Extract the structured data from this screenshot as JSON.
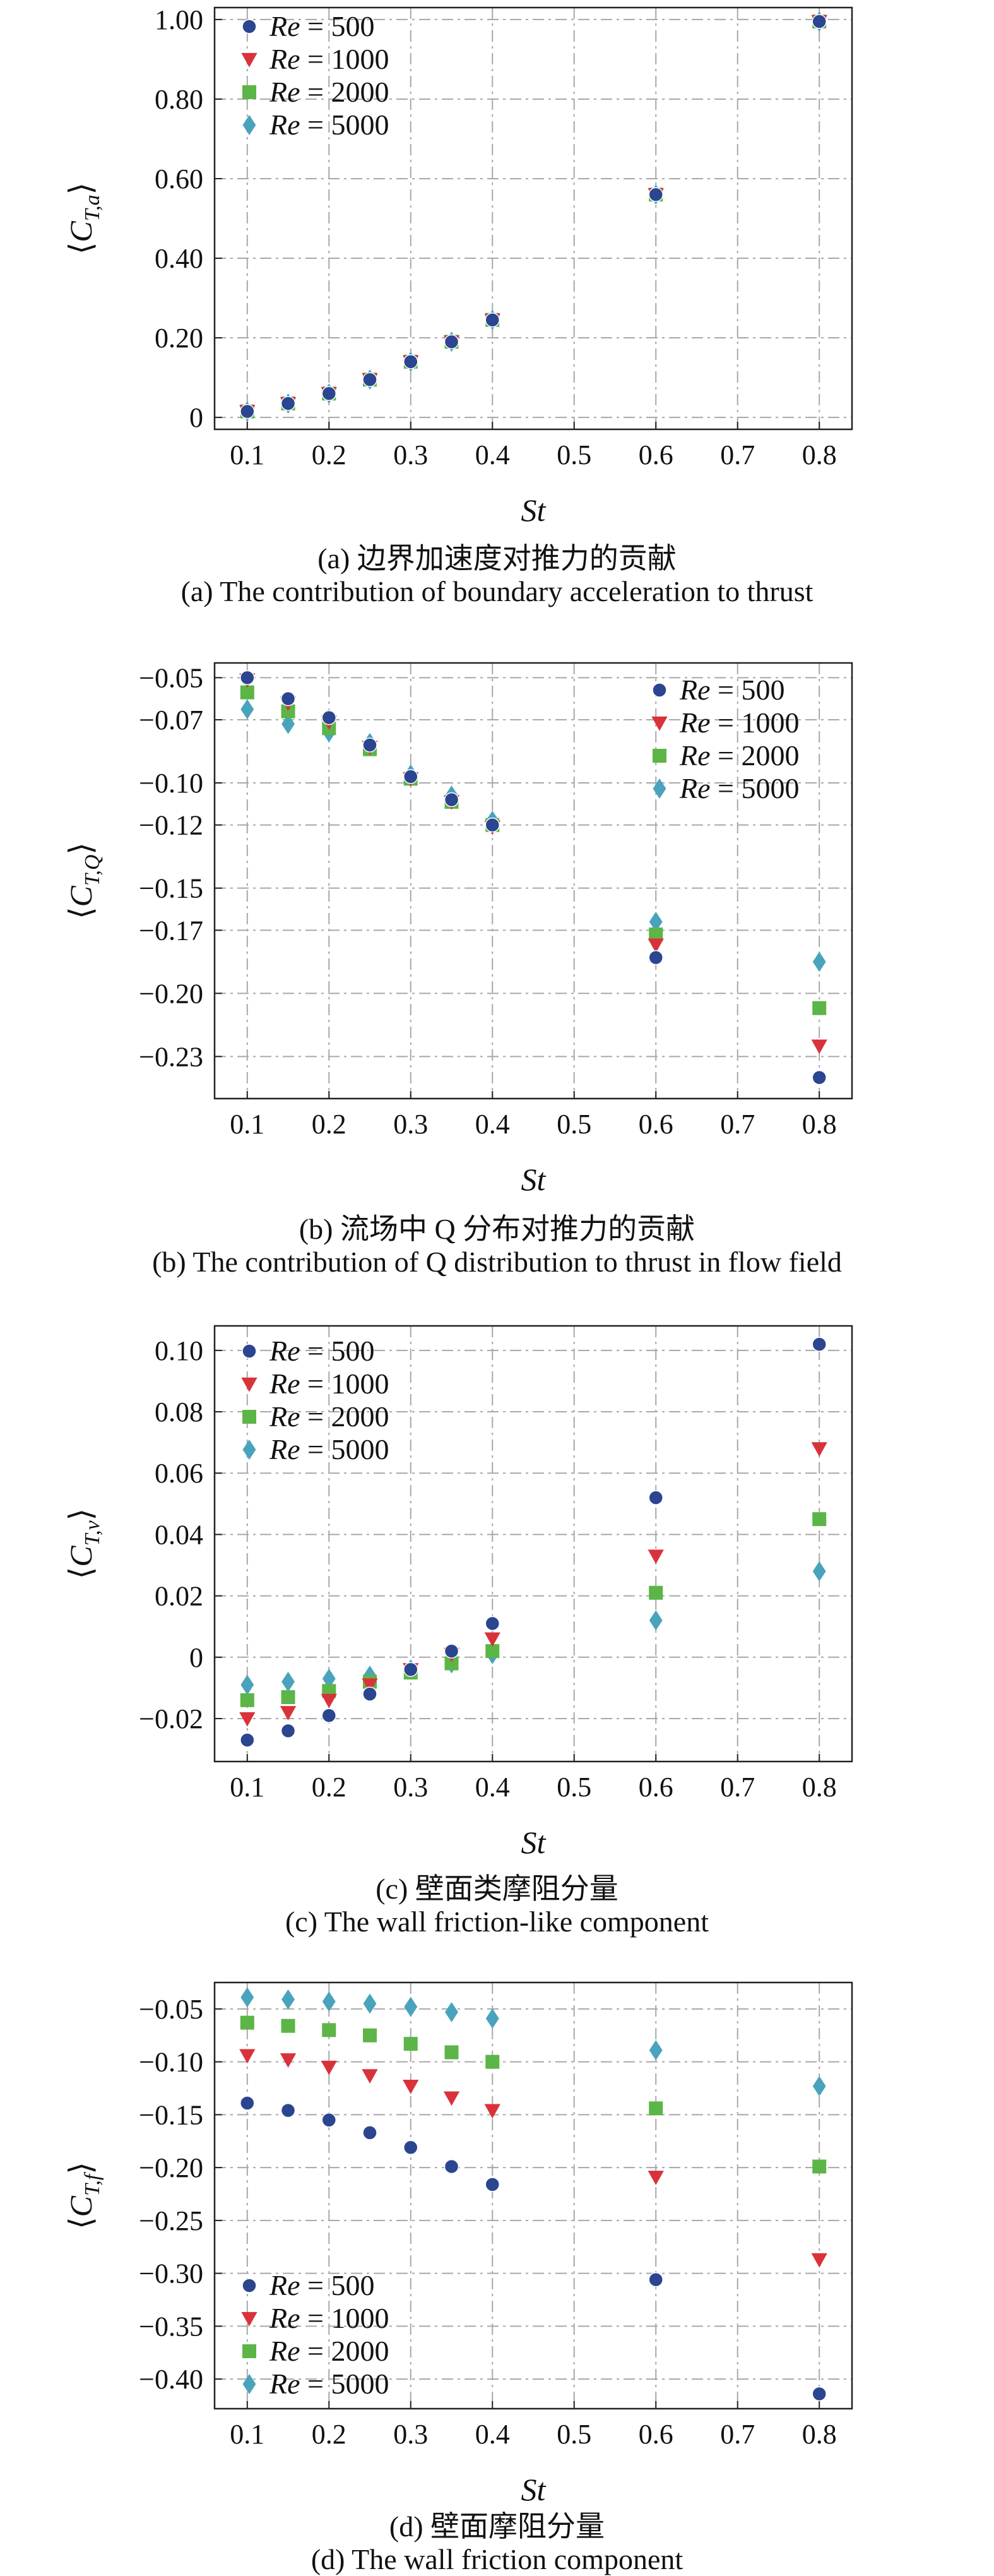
{
  "colors": {
    "re500": "#2b4590",
    "re1000": "#d9323a",
    "re2000": "#5cb547",
    "re5000": "#4aa3bd",
    "grid": "#a8a8a8",
    "frame": "#222222"
  },
  "marker_shapes": {
    "re500": "circle",
    "re1000": "triangle-down",
    "re2000": "square",
    "re5000": "diamond"
  },
  "series_labels": [
    "Re = 500",
    "Re = 1000",
    "Re = 2000",
    "Re = 5000"
  ],
  "chart_data": [
    {
      "type": "scatter",
      "panel": "a",
      "caption_cn": "(a) 边界加速度对推力的贡献",
      "caption_en": "(a) The contribution of boundary acceleration to thrust",
      "xlabel": "St",
      "ylabel": "⟨C_{T,a}⟩",
      "xlim": [
        0.06,
        0.84
      ],
      "ylim": [
        -0.03,
        1.03
      ],
      "xticks": [
        0.1,
        0.2,
        0.3,
        0.4,
        0.5,
        0.6,
        0.7,
        0.8
      ],
      "xtick_labels": [
        "0.1",
        "0.2",
        "0.3",
        "0.4",
        "0.5",
        "0.6",
        "0.7",
        "0.8"
      ],
      "yticks": [
        0,
        0.2,
        0.4,
        0.6,
        0.8,
        1.0
      ],
      "ytick_labels": [
        "0",
        "0.20",
        "0.40",
        "0.60",
        "0.80",
        "1.00"
      ],
      "grid": true,
      "legend": "top-left",
      "x": [
        0.1,
        0.15,
        0.2,
        0.25,
        0.3,
        0.35,
        0.4,
        0.6,
        0.8
      ],
      "series": [
        {
          "name": "Re = 500",
          "values": [
            0.015,
            0.035,
            0.06,
            0.095,
            0.14,
            0.19,
            0.245,
            0.56,
            0.995
          ]
        },
        {
          "name": "Re = 1000",
          "values": [
            0.015,
            0.035,
            0.06,
            0.095,
            0.14,
            0.19,
            0.245,
            0.56,
            0.995
          ]
        },
        {
          "name": "Re = 2000",
          "values": [
            0.015,
            0.035,
            0.06,
            0.095,
            0.14,
            0.19,
            0.245,
            0.56,
            0.995
          ]
        },
        {
          "name": "Re = 5000",
          "values": [
            0.015,
            0.035,
            0.06,
            0.095,
            0.14,
            0.19,
            0.245,
            0.56,
            0.995
          ]
        }
      ]
    },
    {
      "type": "scatter",
      "panel": "b",
      "caption_cn": "(b) 流场中 Q 分布对推力的贡献",
      "caption_en": "(b) The contribution of Q distribution to thrust in flow field",
      "xlabel": "St",
      "ylabel": "⟨C_{T,Q}⟩",
      "xlim": [
        0.06,
        0.84
      ],
      "ylim": [
        -0.25,
        -0.043
      ],
      "xticks": [
        0.1,
        0.2,
        0.3,
        0.4,
        0.5,
        0.6,
        0.7,
        0.8
      ],
      "xtick_labels": [
        "0.1",
        "0.2",
        "0.3",
        "0.4",
        "0.5",
        "0.6",
        "0.7",
        "0.8"
      ],
      "yticks": [
        -0.05,
        -0.07,
        -0.1,
        -0.12,
        -0.15,
        -0.17,
        -0.2,
        -0.23
      ],
      "ytick_labels": [
        "−0.05",
        "−0.07",
        "−0.10",
        "−0.12",
        "−0.15",
        "−0.17",
        "−0.20",
        "−0.23"
      ],
      "grid": true,
      "legend": "top-right",
      "x": [
        0.1,
        0.15,
        0.2,
        0.25,
        0.3,
        0.35,
        0.4,
        0.6,
        0.8
      ],
      "series": [
        {
          "name": "Re = 500",
          "values": [
            -0.05,
            -0.06,
            -0.069,
            -0.082,
            -0.097,
            -0.108,
            -0.12,
            -0.183,
            -0.24
          ]
        },
        {
          "name": "Re = 1000",
          "values": [
            -0.051,
            -0.062,
            -0.071,
            -0.083,
            -0.098,
            -0.109,
            -0.121,
            -0.177,
            -0.225
          ]
        },
        {
          "name": "Re = 2000",
          "values": [
            -0.057,
            -0.066,
            -0.074,
            -0.084,
            -0.098,
            -0.109,
            -0.12,
            -0.172,
            -0.207
          ]
        },
        {
          "name": "Re = 5000",
          "values": [
            -0.065,
            -0.072,
            -0.076,
            -0.081,
            -0.096,
            -0.106,
            -0.118,
            -0.166,
            -0.185
          ]
        }
      ]
    },
    {
      "type": "scatter",
      "panel": "c",
      "caption_cn": "(c) 壁面类摩阻分量",
      "caption_en": "(c) The wall friction-like component",
      "xlabel": "St",
      "ylabel": "⟨C_{T,v}⟩",
      "xlim": [
        0.06,
        0.84
      ],
      "ylim": [
        -0.034,
        0.108
      ],
      "xticks": [
        0.1,
        0.2,
        0.3,
        0.4,
        0.5,
        0.6,
        0.7,
        0.8
      ],
      "xtick_labels": [
        "0.1",
        "0.2",
        "0.3",
        "0.4",
        "0.5",
        "0.6",
        "0.7",
        "0.8"
      ],
      "yticks": [
        -0.02,
        0,
        0.02,
        0.04,
        0.06,
        0.08,
        0.1
      ],
      "ytick_labels": [
        "−0.02",
        "0",
        "0.02",
        "0.04",
        "0.06",
        "0.08",
        "0.10"
      ],
      "grid": true,
      "legend": "top-left",
      "x": [
        0.1,
        0.15,
        0.2,
        0.25,
        0.3,
        0.35,
        0.4,
        0.6,
        0.8
      ],
      "series": [
        {
          "name": "Re = 500",
          "values": [
            -0.027,
            -0.024,
            -0.019,
            -0.012,
            -0.004,
            0.002,
            0.011,
            0.052,
            0.102
          ]
        },
        {
          "name": "Re = 1000",
          "values": [
            -0.02,
            -0.018,
            -0.014,
            -0.009,
            -0.004,
            0.001,
            0.006,
            0.033,
            0.068
          ]
        },
        {
          "name": "Re = 2000",
          "values": [
            -0.014,
            -0.013,
            -0.011,
            -0.008,
            -0.005,
            -0.002,
            0.002,
            0.021,
            0.045
          ]
        },
        {
          "name": "Re = 5000",
          "values": [
            -0.009,
            -0.008,
            -0.007,
            -0.006,
            -0.004,
            -0.002,
            0.001,
            0.012,
            0.028
          ]
        }
      ]
    },
    {
      "type": "scatter",
      "panel": "d",
      "caption_cn": "(d) 壁面摩阻分量",
      "caption_en": "(d) The wall friction component",
      "xlabel": "St",
      "ylabel": "⟨C_{T,f}⟩",
      "xlim": [
        0.06,
        0.84
      ],
      "ylim": [
        -0.428,
        -0.025
      ],
      "xticks": [
        0.1,
        0.2,
        0.3,
        0.4,
        0.5,
        0.6,
        0.7,
        0.8
      ],
      "xtick_labels": [
        "0.1",
        "0.2",
        "0.3",
        "0.4",
        "0.5",
        "0.6",
        "0.7",
        "0.8"
      ],
      "yticks": [
        -0.05,
        -0.1,
        -0.15,
        -0.2,
        -0.25,
        -0.3,
        -0.35,
        -0.4
      ],
      "ytick_labels": [
        "−0.05",
        "−0.10",
        "−0.15",
        "−0.20",
        "−0.25",
        "−0.30",
        "−0.35",
        "−0.40"
      ],
      "grid": true,
      "legend": "bottom-left",
      "x": [
        0.1,
        0.15,
        0.2,
        0.25,
        0.3,
        0.35,
        0.4,
        0.6,
        0.8
      ],
      "series": [
        {
          "name": "Re = 500",
          "values": [
            -0.139,
            -0.146,
            -0.155,
            -0.167,
            -0.181,
            -0.199,
            -0.216,
            -0.306,
            -0.414
          ]
        },
        {
          "name": "Re = 1000",
          "values": [
            -0.094,
            -0.098,
            -0.105,
            -0.113,
            -0.123,
            -0.134,
            -0.146,
            -0.209,
            -0.287
          ]
        },
        {
          "name": "Re = 2000",
          "values": [
            -0.063,
            -0.066,
            -0.07,
            -0.075,
            -0.083,
            -0.091,
            -0.1,
            -0.144,
            -0.199
          ]
        },
        {
          "name": "Re = 5000",
          "values": [
            -0.039,
            -0.041,
            -0.043,
            -0.045,
            -0.048,
            -0.053,
            -0.059,
            -0.089,
            -0.123
          ]
        }
      ]
    }
  ]
}
